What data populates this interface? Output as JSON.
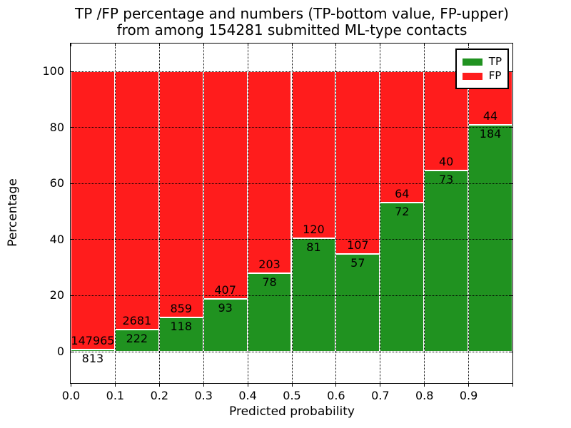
{
  "figure": {
    "title_line1": "TP /FP percentage and numbers (TP-bottom value, FP-upper)",
    "title_line2": "from among 154281 submitted ML-type contacts",
    "xlabel": "Predicted probability",
    "ylabel": "Percentage"
  },
  "legend": {
    "position": "upper right",
    "items": [
      {
        "label": "TP",
        "color": "#209220"
      },
      {
        "label": "FP",
        "color": "#ff1c1c"
      }
    ]
  },
  "chart_data": {
    "type": "bar",
    "stacked": true,
    "normalized_to_100_percent": true,
    "title": "TP /FP percentage and numbers (TP-bottom value, FP-upper) from among 154281 submitted ML-type contacts",
    "xlabel": "Predicted probability",
    "ylabel": "Percentage",
    "x_bin_edges": [
      0.0,
      0.1,
      0.2,
      0.3,
      0.4,
      0.5,
      0.6,
      0.7,
      0.8,
      0.9,
      1.0
    ],
    "xtick_labels": [
      "0.0",
      "0.1",
      "0.2",
      "0.3",
      "0.4",
      "0.5",
      "0.6",
      "0.7",
      "0.8",
      "0.9"
    ],
    "yticks": [
      0,
      20,
      40,
      60,
      80,
      100
    ],
    "xlim": [
      0.0,
      1.0
    ],
    "ylim_approx": [
      -11.7,
      110.1
    ],
    "grid": "dotted black, drawn above bars",
    "total_contacts": 154281,
    "series": [
      {
        "name": "TP",
        "color": "#209220",
        "counts": [
          813,
          222,
          118,
          93,
          78,
          81,
          57,
          72,
          73,
          184
        ]
      },
      {
        "name": "FP",
        "color": "#ff1c1c",
        "counts": [
          147965,
          2681,
          859,
          407,
          203,
          120,
          107,
          64,
          40,
          44
        ]
      }
    ],
    "tp_percent_of_bin": [
      0.55,
      7.65,
      12.08,
      18.6,
      27.76,
      40.3,
      34.76,
      52.94,
      64.6,
      80.7
    ]
  }
}
